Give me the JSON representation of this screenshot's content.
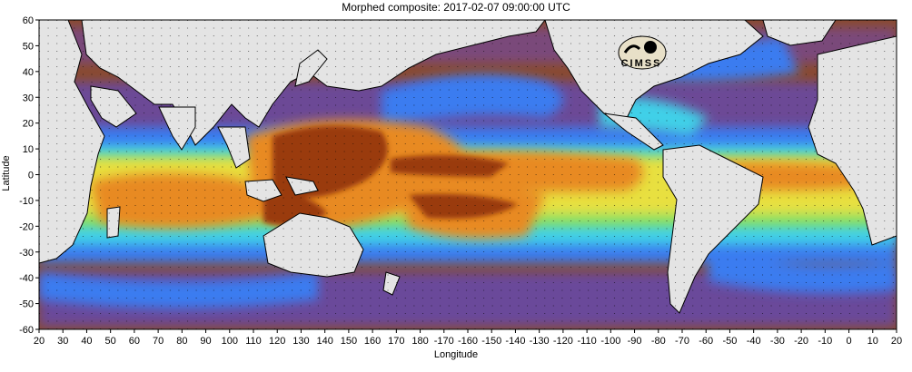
{
  "title": "Morphed composite: 2017-02-07 09:00:00 UTC",
  "axes": {
    "ylabel": "Latitude",
    "xlabel": "Longitude",
    "lat_ticks": [
      "60",
      "50",
      "40",
      "30",
      "20",
      "10",
      "0",
      "-10",
      "-20",
      "-30",
      "-40",
      "-50",
      "-60"
    ],
    "lon_ticks": [
      "20",
      "30",
      "40",
      "50",
      "60",
      "70",
      "80",
      "90",
      "100",
      "110",
      "120",
      "130",
      "140",
      "150",
      "160",
      "170",
      "180",
      "-170",
      "-160",
      "-150",
      "-140",
      "-130",
      "-120",
      "-110",
      "-100",
      "-90",
      "-80",
      "-70",
      "-60",
      "-50",
      "-40",
      "-30",
      "-20",
      "-10",
      "0",
      "10",
      "20"
    ]
  },
  "logo": {
    "text": "CIMSS"
  },
  "colors": {
    "frame": "#000000",
    "land": "#e4e4e4",
    "dry": "#8a4a2c",
    "low": "#6a4a9a",
    "moist_blue": "#3a7cf0",
    "cyan": "#40d0e8",
    "green": "#8ae060",
    "yellow": "#e8e040",
    "orange": "#e88a20",
    "peak": "#9a3a08"
  }
}
